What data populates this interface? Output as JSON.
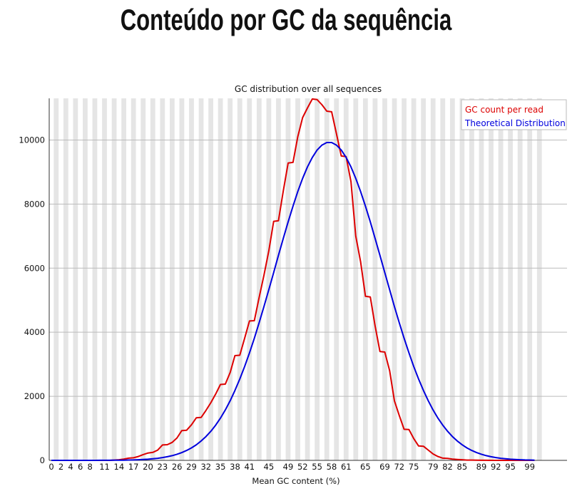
{
  "page": {
    "title": "Conteúdo por GC da sequência"
  },
  "chart_data": {
    "type": "line",
    "title": "GC distribution over all sequences",
    "xlabel": "Mean GC content (%)",
    "ylabel": "",
    "xlim": [
      0,
      100
    ],
    "ylim": [
      0,
      11300
    ],
    "yticks": [
      0,
      2000,
      4000,
      6000,
      8000,
      10000
    ],
    "xtick_labels": [
      "0",
      "2",
      "4",
      "6",
      "8",
      "11",
      "14",
      "17",
      "20",
      "23",
      "26",
      "29",
      "32",
      "35",
      "38",
      "41",
      "45",
      "49",
      "52",
      "55",
      "58",
      "61",
      "65",
      "69",
      "72",
      "75",
      "79",
      "82",
      "85",
      "89",
      "92",
      "95",
      "99"
    ],
    "grid": "horizontal lines with alternating vertical bands",
    "legend_placement": "top-right",
    "legend_position": "top-right",
    "colors": {
      "series_1": "#dd0000",
      "series_2": "#0000dd",
      "band": "#e5e5e5",
      "grid": "#bbbbbb"
    },
    "series": [
      {
        "name": "GC count per read",
        "color": "#dd0000",
        "points": [
          [
            0,
            0
          ],
          [
            1,
            0
          ],
          [
            2,
            0
          ],
          [
            3,
            0
          ],
          [
            4,
            0
          ],
          [
            5,
            0
          ],
          [
            6,
            0
          ],
          [
            7,
            0
          ],
          [
            8,
            0
          ],
          [
            9,
            0
          ],
          [
            10,
            0
          ],
          [
            11,
            0
          ],
          [
            12,
            0
          ],
          [
            13,
            10
          ],
          [
            14,
            20
          ],
          [
            15,
            40
          ],
          [
            16,
            70
          ],
          [
            17,
            80
          ],
          [
            18,
            120
          ],
          [
            19,
            180
          ],
          [
            20,
            230
          ],
          [
            21,
            250
          ],
          [
            22,
            320
          ],
          [
            23,
            480
          ],
          [
            24,
            490
          ],
          [
            25,
            560
          ],
          [
            26,
            700
          ],
          [
            27,
            930
          ],
          [
            28,
            940
          ],
          [
            29,
            1110
          ],
          [
            30,
            1330
          ],
          [
            31,
            1340
          ],
          [
            32,
            1560
          ],
          [
            33,
            1800
          ],
          [
            34,
            2070
          ],
          [
            35,
            2370
          ],
          [
            36,
            2380
          ],
          [
            37,
            2740
          ],
          [
            38,
            3270
          ],
          [
            39,
            3280
          ],
          [
            40,
            3810
          ],
          [
            41,
            4350
          ],
          [
            42,
            4360
          ],
          [
            43,
            5080
          ],
          [
            44,
            5780
          ],
          [
            45,
            6540
          ],
          [
            46,
            7460
          ],
          [
            47,
            7480
          ],
          [
            48,
            8410
          ],
          [
            49,
            9280
          ],
          [
            50,
            9300
          ],
          [
            51,
            10100
          ],
          [
            52,
            10700
          ],
          [
            53,
            11000
          ],
          [
            54,
            11280
          ],
          [
            55,
            11260
          ],
          [
            56,
            11100
          ],
          [
            57,
            10900
          ],
          [
            58,
            10880
          ],
          [
            59,
            10200
          ],
          [
            60,
            9500
          ],
          [
            61,
            9480
          ],
          [
            62,
            8700
          ],
          [
            63,
            7000
          ],
          [
            64,
            6200
          ],
          [
            65,
            5120
          ],
          [
            66,
            5100
          ],
          [
            67,
            4200
          ],
          [
            68,
            3400
          ],
          [
            69,
            3380
          ],
          [
            70,
            2800
          ],
          [
            71,
            1860
          ],
          [
            72,
            1400
          ],
          [
            73,
            970
          ],
          [
            74,
            960
          ],
          [
            75,
            680
          ],
          [
            76,
            450
          ],
          [
            77,
            440
          ],
          [
            78,
            320
          ],
          [
            79,
            200
          ],
          [
            80,
            120
          ],
          [
            81,
            70
          ],
          [
            82,
            60
          ],
          [
            83,
            40
          ],
          [
            84,
            30
          ],
          [
            85,
            20
          ],
          [
            86,
            10
          ],
          [
            87,
            10
          ],
          [
            88,
            5
          ],
          [
            89,
            3
          ],
          [
            90,
            2
          ],
          [
            91,
            0
          ],
          [
            92,
            0
          ],
          [
            93,
            0
          ],
          [
            94,
            0
          ],
          [
            95,
            0
          ],
          [
            96,
            0
          ],
          [
            97,
            0
          ],
          [
            98,
            0
          ],
          [
            99,
            0
          ],
          [
            100,
            0
          ]
        ]
      },
      {
        "name": "Theoretical Distribution",
        "color": "#0000dd",
        "mean": 57.5,
        "sd": 11.2,
        "peak": 9930
      }
    ]
  }
}
